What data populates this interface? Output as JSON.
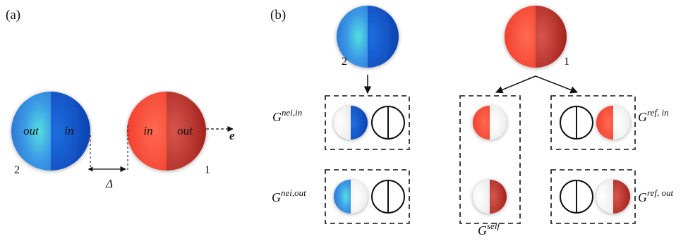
{
  "panel_a": {
    "label": "(a)",
    "sphere2": {
      "number": "2",
      "left_label": "out",
      "right_label": "in"
    },
    "sphere1": {
      "number": "1",
      "left_label": "in",
      "right_label": "out"
    },
    "gap_label": "Δ",
    "direction_label": "e"
  },
  "panel_b": {
    "label": "(b)",
    "sphere2_number": "2",
    "sphere1_number": "1",
    "groups": {
      "nei_in": {
        "symbol": "G",
        "superscript": "nei,in"
      },
      "nei_out": {
        "symbol": "G",
        "superscript": "nei,out"
      },
      "self": {
        "symbol": "G",
        "superscript": "self"
      },
      "ref_in": {
        "symbol": "G",
        "superscript": "ref, in"
      },
      "ref_out": {
        "symbol": "G",
        "superscript": "ref, out"
      }
    }
  },
  "colors": {
    "blue_light": "#4aa6e6",
    "blue_dark": "#0a47c2",
    "red_light": "#ff4a35",
    "red_dark": "#a8221a"
  }
}
